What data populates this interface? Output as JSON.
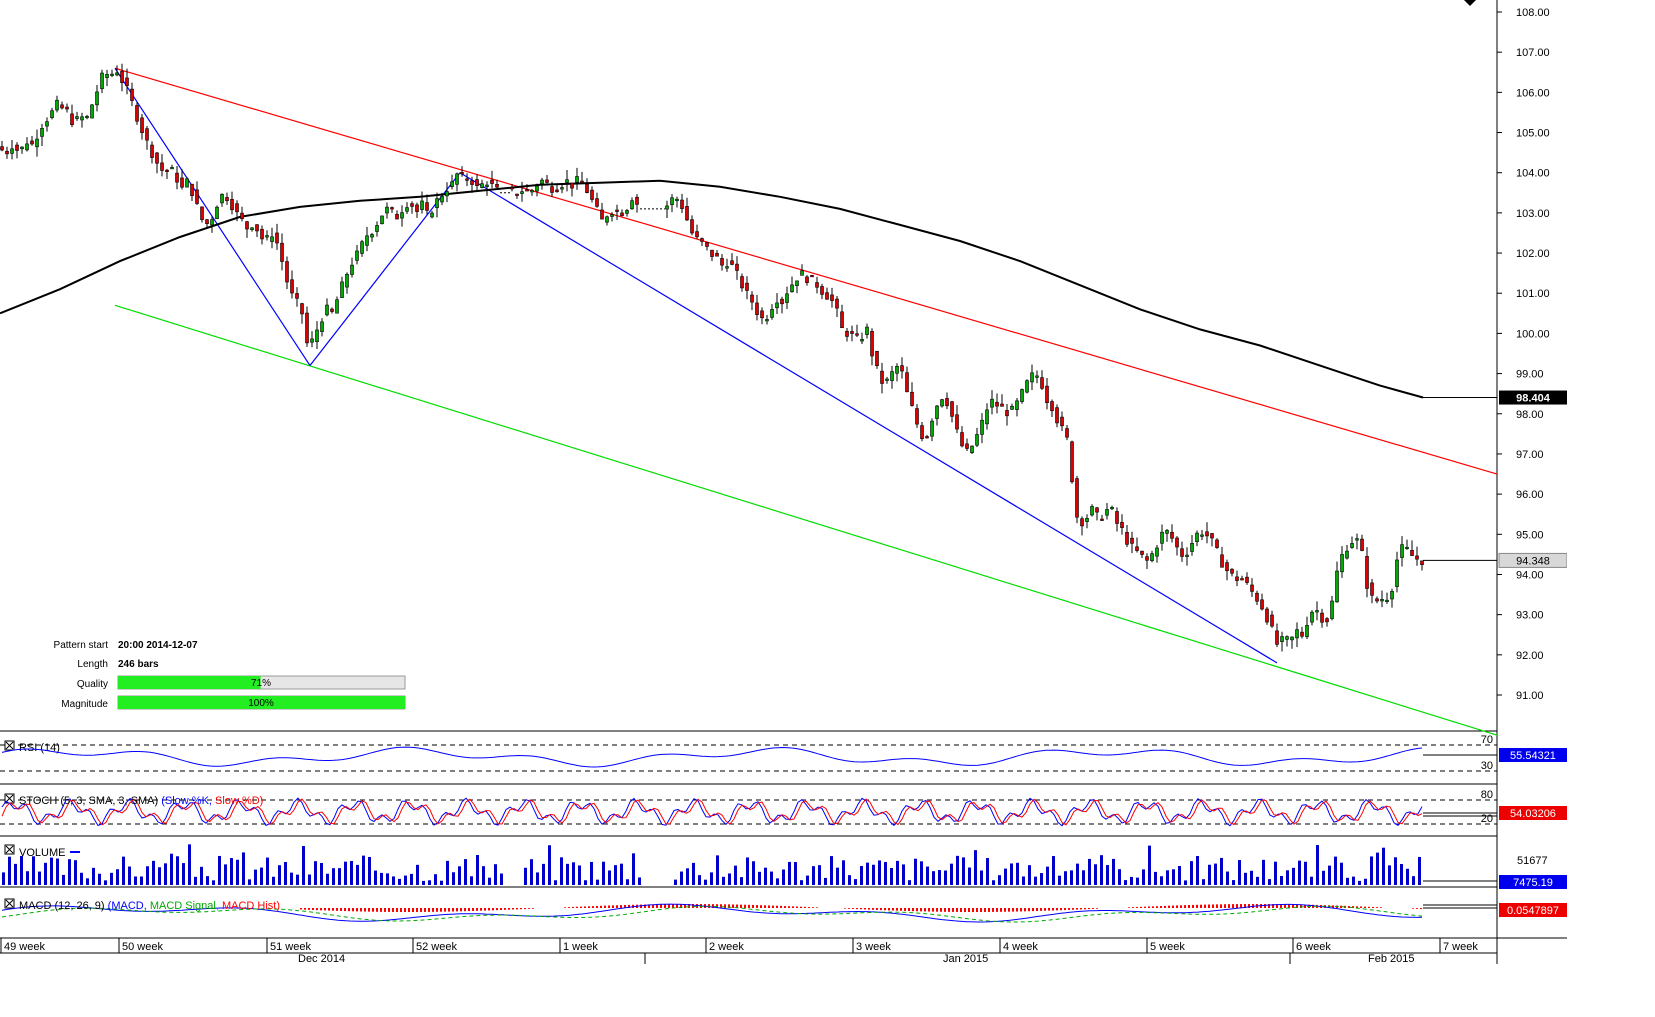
{
  "chart_data": {
    "type": "candlestick",
    "main": {
      "y_axis": {
        "min": 90,
        "max": 108,
        "ticks": [
          "108.00",
          "107.00",
          "106.00",
          "105.00",
          "104.00",
          "103.00",
          "102.00",
          "101.00",
          "100.00",
          "99.00",
          "98.00",
          "97.00",
          "96.00",
          "95.00",
          "94.00",
          "93.00",
          "92.00",
          "91.00"
        ]
      },
      "price_path": [
        [
          0,
          104.6
        ],
        [
          6,
          104.5
        ],
        [
          12,
          104.7
        ],
        [
          20,
          104.5
        ],
        [
          26,
          104.8
        ],
        [
          32,
          104.7
        ],
        [
          38,
          105.0
        ],
        [
          44,
          105.3
        ],
        [
          50,
          105.4
        ],
        [
          56,
          105.7
        ],
        [
          62,
          105.6
        ],
        [
          68,
          105.5
        ],
        [
          74,
          105.2
        ],
        [
          80,
          105.4
        ],
        [
          86,
          105.3
        ],
        [
          92,
          105.7
        ],
        [
          98,
          106.1
        ],
        [
          104,
          106.5
        ],
        [
          110,
          106.4
        ],
        [
          116,
          106.6
        ],
        [
          122,
          106.3
        ],
        [
          128,
          106.0
        ],
        [
          134,
          105.6
        ],
        [
          140,
          105.2
        ],
        [
          146,
          104.8
        ],
        [
          152,
          104.5
        ],
        [
          158,
          104.2
        ],
        [
          164,
          104.0
        ],
        [
          170,
          104.1
        ],
        [
          176,
          103.9
        ],
        [
          182,
          103.6
        ],
        [
          188,
          103.8
        ],
        [
          194,
          103.4
        ],
        [
          200,
          102.9
        ],
        [
          206,
          102.7
        ],
        [
          212,
          102.9
        ],
        [
          218,
          103.3
        ],
        [
          224,
          103.5
        ],
        [
          230,
          103.3
        ],
        [
          236,
          103.0
        ],
        [
          242,
          102.8
        ],
        [
          248,
          102.6
        ],
        [
          254,
          102.8
        ],
        [
          260,
          102.4
        ],
        [
          266,
          102.3
        ],
        [
          272,
          102.5
        ],
        [
          278,
          102.2
        ],
        [
          284,
          101.6
        ],
        [
          290,
          101.0
        ],
        [
          296,
          100.8
        ],
        [
          302,
          100.5
        ],
        [
          308,
          99.6
        ],
        [
          314,
          99.9
        ],
        [
          320,
          100.3
        ],
        [
          326,
          100.6
        ],
        [
          332,
          100.5
        ],
        [
          338,
          100.9
        ],
        [
          344,
          101.3
        ],
        [
          350,
          101.7
        ],
        [
          356,
          101.9
        ],
        [
          362,
          102.2
        ],
        [
          368,
          102.5
        ],
        [
          374,
          102.6
        ],
        [
          380,
          102.9
        ],
        [
          386,
          103.1
        ],
        [
          392,
          103.0
        ],
        [
          398,
          102.9
        ],
        [
          404,
          103.2
        ],
        [
          410,
          103.3
        ],
        [
          416,
          103.0
        ],
        [
          422,
          103.2
        ],
        [
          428,
          102.9
        ],
        [
          434,
          103.2
        ],
        [
          440,
          103.4
        ],
        [
          446,
          103.6
        ],
        [
          452,
          103.7
        ],
        [
          458,
          104.0
        ],
        [
          464,
          103.8
        ],
        [
          470,
          103.9
        ],
        [
          476,
          103.6
        ],
        [
          482,
          103.7
        ],
        [
          488,
          103.8
        ],
        [
          494,
          103.6
        ],
        [
          500,
          103.5
        ],
        [
          506,
          103.6
        ],
        [
          512,
          103.5
        ],
        [
          518,
          103.5
        ],
        [
          524,
          103.6
        ],
        [
          530,
          103.5
        ],
        [
          536,
          103.7
        ],
        [
          542,
          103.8
        ],
        [
          548,
          103.7
        ],
        [
          554,
          103.6
        ],
        [
          560,
          103.7
        ],
        [
          566,
          103.8
        ],
        [
          572,
          103.7
        ],
        [
          578,
          103.8
        ],
        [
          584,
          103.7
        ],
        [
          590,
          103.4
        ],
        [
          596,
          103.1
        ],
        [
          602,
          102.8
        ],
        [
          608,
          103.0
        ],
        [
          614,
          103.1
        ],
        [
          620,
          103.0
        ],
        [
          626,
          103.1
        ],
        [
          632,
          103.4
        ],
        [
          638,
          103.2
        ],
        [
          644,
          103.1
        ],
        [
          650,
          103.1
        ],
        [
          656,
          103.1
        ],
        [
          662,
          103.1
        ],
        [
          668,
          103.2
        ],
        [
          674,
          103.4
        ],
        [
          680,
          103.3
        ],
        [
          686,
          102.9
        ],
        [
          692,
          102.5
        ],
        [
          698,
          102.3
        ],
        [
          704,
          102.2
        ],
        [
          710,
          102.0
        ],
        [
          716,
          101.9
        ],
        [
          722,
          101.7
        ],
        [
          728,
          101.8
        ],
        [
          734,
          101.6
        ],
        [
          740,
          101.3
        ],
        [
          746,
          101.0
        ],
        [
          752,
          100.8
        ],
        [
          758,
          100.5
        ],
        [
          764,
          100.3
        ],
        [
          770,
          100.6
        ],
        [
          776,
          100.9
        ],
        [
          782,
          100.8
        ],
        [
          788,
          101.1
        ],
        [
          794,
          101.3
        ],
        [
          800,
          101.5
        ],
        [
          806,
          101.4
        ],
        [
          812,
          101.3
        ],
        [
          818,
          101.2
        ],
        [
          824,
          101.0
        ],
        [
          830,
          100.9
        ],
        [
          836,
          100.6
        ],
        [
          842,
          100.1
        ],
        [
          848,
          100.0
        ],
        [
          854,
          99.9
        ],
        [
          860,
          99.8
        ],
        [
          866,
          100.2
        ],
        [
          872,
          99.5
        ],
        [
          878,
          99.0
        ],
        [
          884,
          98.7
        ],
        [
          890,
          98.9
        ],
        [
          896,
          99.2
        ],
        [
          902,
          99.0
        ],
        [
          908,
          98.4
        ],
        [
          914,
          98.0
        ],
        [
          920,
          97.5
        ],
        [
          926,
          97.4
        ],
        [
          932,
          97.9
        ],
        [
          938,
          98.3
        ],
        [
          944,
          98.5
        ],
        [
          950,
          98.1
        ],
        [
          956,
          97.6
        ],
        [
          962,
          97.2
        ],
        [
          968,
          97.0
        ],
        [
          974,
          97.3
        ],
        [
          980,
          97.6
        ],
        [
          986,
          98.1
        ],
        [
          992,
          98.3
        ],
        [
          998,
          98.2
        ],
        [
          1004,
          98.1
        ],
        [
          1010,
          98.0
        ],
        [
          1016,
          98.2
        ],
        [
          1022,
          98.5
        ],
        [
          1028,
          98.8
        ],
        [
          1034,
          99.0
        ],
        [
          1040,
          98.9
        ],
        [
          1046,
          98.4
        ],
        [
          1052,
          98.2
        ],
        [
          1058,
          97.8
        ],
        [
          1064,
          97.5
        ],
        [
          1070,
          97.2
        ],
        [
          1074,
          95.6
        ],
        [
          1080,
          95.3
        ],
        [
          1086,
          95.4
        ],
        [
          1092,
          95.6
        ],
        [
          1098,
          95.4
        ],
        [
          1104,
          95.5
        ],
        [
          1110,
          95.7
        ],
        [
          1116,
          95.3
        ],
        [
          1122,
          95.1
        ],
        [
          1128,
          94.8
        ],
        [
          1134,
          94.6
        ],
        [
          1140,
          94.5
        ],
        [
          1146,
          94.3
        ],
        [
          1152,
          94.5
        ],
        [
          1158,
          94.8
        ],
        [
          1164,
          95.1
        ],
        [
          1170,
          95.0
        ],
        [
          1176,
          94.7
        ],
        [
          1182,
          94.5
        ],
        [
          1188,
          94.6
        ],
        [
          1194,
          94.9
        ],
        [
          1200,
          95.1
        ],
        [
          1206,
          95.0
        ],
        [
          1212,
          94.8
        ],
        [
          1218,
          94.5
        ],
        [
          1224,
          94.2
        ],
        [
          1230,
          94.0
        ],
        [
          1236,
          93.9
        ],
        [
          1242,
          93.9
        ],
        [
          1248,
          93.7
        ],
        [
          1254,
          93.5
        ],
        [
          1260,
          93.3
        ],
        [
          1266,
          93.0
        ],
        [
          1272,
          92.6
        ],
        [
          1278,
          92.2
        ],
        [
          1284,
          92.4
        ],
        [
          1290,
          92.3
        ],
        [
          1296,
          92.6
        ],
        [
          1302,
          92.5
        ],
        [
          1308,
          92.9
        ],
        [
          1314,
          93.2
        ],
        [
          1320,
          93.0
        ],
        [
          1326,
          92.8
        ],
        [
          1332,
          93.3
        ],
        [
          1338,
          94.2
        ],
        [
          1344,
          94.6
        ],
        [
          1350,
          94.8
        ],
        [
          1356,
          94.9
        ],
        [
          1362,
          94.5
        ],
        [
          1368,
          93.6
        ],
        [
          1374,
          93.3
        ],
        [
          1380,
          93.4
        ],
        [
          1386,
          93.4
        ],
        [
          1392,
          93.7
        ],
        [
          1398,
          94.5
        ],
        [
          1404,
          94.7
        ],
        [
          1410,
          94.5
        ],
        [
          1416,
          94.4
        ],
        [
          1422,
          94.35
        ]
      ],
      "price_label": "94.348",
      "sma_label": "98.404",
      "sma_path": [
        [
          0,
          100.5
        ],
        [
          60,
          101.1
        ],
        [
          120,
          101.8
        ],
        [
          180,
          102.4
        ],
        [
          240,
          102.9
        ],
        [
          300,
          103.15
        ],
        [
          360,
          103.3
        ],
        [
          420,
          103.4
        ],
        [
          480,
          103.55
        ],
        [
          540,
          103.7
        ],
        [
          600,
          103.75
        ],
        [
          660,
          103.8
        ],
        [
          720,
          103.65
        ],
        [
          780,
          103.4
        ],
        [
          840,
          103.1
        ],
        [
          900,
          102.7
        ],
        [
          960,
          102.3
        ],
        [
          1020,
          101.8
        ],
        [
          1080,
          101.2
        ],
        [
          1140,
          100.6
        ],
        [
          1200,
          100.1
        ],
        [
          1260,
          99.7
        ],
        [
          1320,
          99.2
        ],
        [
          1380,
          98.7
        ],
        [
          1423,
          98.404
        ]
      ],
      "red_line": [
        [
          115,
          106.6
        ],
        [
          1497,
          96.5
        ]
      ],
      "green_line": [
        [
          115,
          100.7
        ],
        [
          1497,
          90.0
        ]
      ],
      "blue_lines": [
        [
          [
            115,
            106.6
          ],
          [
            310,
            99.2
          ]
        ],
        [
          [
            310,
            99.2
          ],
          [
            460,
            104.0
          ]
        ],
        [
          [
            460,
            104.0
          ],
          [
            1277,
            91.8
          ]
        ]
      ],
      "pattern": {
        "start_label": "Pattern start",
        "start_value": "20:00 2014-12-07",
        "length_label": "Length",
        "length_value": "246 bars",
        "quality_label": "Quality",
        "quality_value": "71%",
        "quality_pct": 71,
        "magnitude_label": "Magnitude",
        "magnitude_value": "100%",
        "magnitude_pct": 100
      }
    },
    "panels": {
      "rsi": {
        "title": "RSI (14)",
        "value": "55.54321",
        "levels": [
          "70",
          "30"
        ]
      },
      "stoch": {
        "title": "STOCH (5, 3, SMA, 3, SMA)",
        "slow_k": "(Slow %K,",
        "slow_d": "Slow %D)",
        "value": "54.03206",
        "levels": [
          "80",
          "20"
        ]
      },
      "volume": {
        "title": "VOLUME",
        "max_label": "51677",
        "value": "7475.19"
      },
      "macd": {
        "title": "MACD (12, 26, 9)",
        "macd": "(MACD,",
        "signal": "MACD Signal,",
        "hist": "MACD Hist)",
        "value": "0.0547897"
      }
    },
    "x_axis": {
      "week_labels": [
        {
          "text": "49 week",
          "x": 4
        },
        {
          "text": "50 week",
          "x": 122
        },
        {
          "text": "51 week",
          "x": 270
        },
        {
          "text": "52 week",
          "x": 416
        },
        {
          "text": "1 week",
          "x": 563
        },
        {
          "text": "2 week",
          "x": 709
        },
        {
          "text": "3 week",
          "x": 856
        },
        {
          "text": "4 week",
          "x": 1003
        },
        {
          "text": "5 week",
          "x": 1150
        },
        {
          "text": "6 week",
          "x": 1296
        },
        {
          "text": "7 week",
          "x": 1443
        }
      ],
      "month_labels": [
        {
          "text": "Dec 2014",
          "x": 298
        },
        {
          "text": "Jan 2015",
          "x": 943
        },
        {
          "text": "Feb 2015",
          "x": 1368
        }
      ]
    },
    "colors": {
      "up": "#00aa00",
      "down": "#dd0000",
      "sma": "#000000",
      "resistance": "#ff0000",
      "support": "#00dd00",
      "zigzag": "#0000ff"
    }
  }
}
